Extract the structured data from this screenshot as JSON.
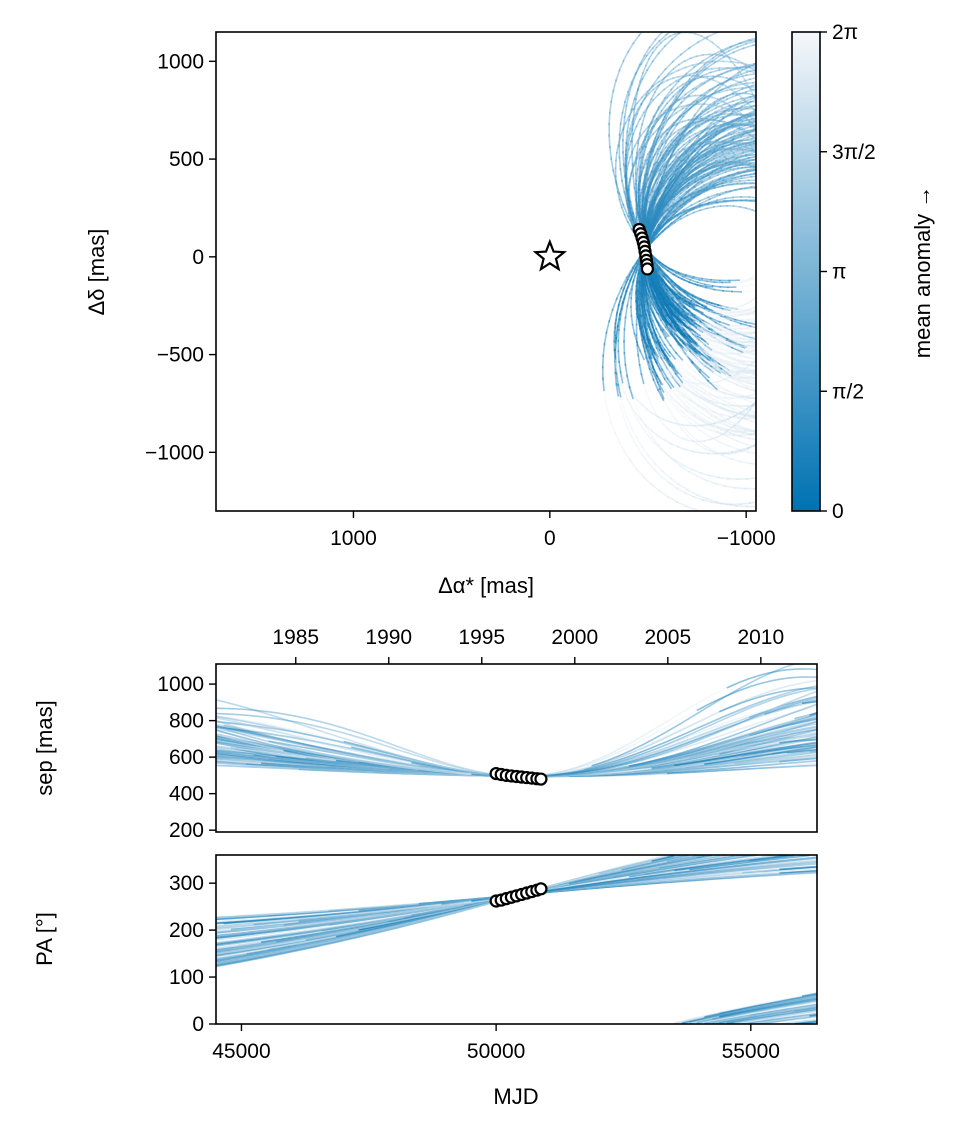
{
  "chart_data": [
    {
      "id": "sky",
      "type": "line",
      "xlabel": "Δα* [mas]",
      "ylabel": "Δδ [mas]",
      "xlim": [
        1700,
        -1050
      ],
      "ylim": [
        -1300,
        1150
      ],
      "x_inverted": true,
      "xticks": [
        {
          "v": 1000,
          "label": "1000"
        },
        {
          "v": 0,
          "label": "0"
        },
        {
          "v": -1000,
          "label": "−1000"
        }
      ],
      "yticks": [
        {
          "v": 1000,
          "label": "1000"
        },
        {
          "v": 500,
          "label": "500"
        },
        {
          "v": 0,
          "label": "0"
        },
        {
          "v": -500,
          "label": "−500"
        },
        {
          "v": -1000,
          "label": "−1000"
        }
      ],
      "star_marker": {
        "x": 0,
        "y": 0,
        "symbol": "star"
      },
      "observations": [
        {
          "x": -455,
          "y": 140
        },
        {
          "x": -463,
          "y": 118
        },
        {
          "x": -470,
          "y": 96
        },
        {
          "x": -476,
          "y": 74
        },
        {
          "x": -481,
          "y": 51
        },
        {
          "x": -485,
          "y": 28
        },
        {
          "x": -489,
          "y": 5
        },
        {
          "x": -492,
          "y": -18
        },
        {
          "x": -495,
          "y": -40
        },
        {
          "x": -497,
          "y": -62
        }
      ],
      "grid": false
    },
    {
      "id": "sep",
      "type": "line",
      "xlabel": "",
      "ylabel": "sep [mas]",
      "xlim": [
        44500,
        56300
      ],
      "ylim": [
        190,
        1110
      ],
      "yticks": [
        {
          "v": 200,
          "label": "200"
        },
        {
          "v": 400,
          "label": "400"
        },
        {
          "v": 600,
          "label": "600"
        },
        {
          "v": 800,
          "label": "800"
        },
        {
          "v": 1000,
          "label": "1000"
        }
      ],
      "top_axis": {
        "ticks": [
          {
            "mjd": 46066,
            "label": "1985"
          },
          {
            "mjd": 47892,
            "label": "1990"
          },
          {
            "mjd": 49718,
            "label": "1995"
          },
          {
            "mjd": 51544,
            "label": "2000"
          },
          {
            "mjd": 53371,
            "label": "2005"
          },
          {
            "mjd": 55197,
            "label": "2010"
          }
        ]
      },
      "observations": [
        {
          "x": 50000,
          "y": 510
        },
        {
          "x": 50100,
          "y": 505
        },
        {
          "x": 50200,
          "y": 500
        },
        {
          "x": 50300,
          "y": 497
        },
        {
          "x": 50400,
          "y": 494
        },
        {
          "x": 50500,
          "y": 491
        },
        {
          "x": 50600,
          "y": 488
        },
        {
          "x": 50700,
          "y": 485
        },
        {
          "x": 50800,
          "y": 482
        },
        {
          "x": 50880,
          "y": 480
        }
      ],
      "grid": false
    },
    {
      "id": "pa",
      "type": "line",
      "xlabel": "MJD",
      "ylabel": "PA [°]",
      "xlim": [
        44500,
        56300
      ],
      "ylim": [
        0,
        360
      ],
      "xticks": [
        {
          "v": 45000,
          "label": "45000"
        },
        {
          "v": 50000,
          "label": "50000"
        },
        {
          "v": 55000,
          "label": "55000"
        }
      ],
      "yticks": [
        {
          "v": 0,
          "label": "0"
        },
        {
          "v": 100,
          "label": "100"
        },
        {
          "v": 200,
          "label": "200"
        },
        {
          "v": 300,
          "label": "300"
        }
      ],
      "observations": [
        {
          "x": 50000,
          "y": 262
        },
        {
          "x": 50100,
          "y": 264
        },
        {
          "x": 50200,
          "y": 267
        },
        {
          "x": 50300,
          "y": 270
        },
        {
          "x": 50400,
          "y": 273
        },
        {
          "x": 50500,
          "y": 276
        },
        {
          "x": 50600,
          "y": 279
        },
        {
          "x": 50700,
          "y": 282
        },
        {
          "x": 50800,
          "y": 285
        },
        {
          "x": 50880,
          "y": 288
        }
      ],
      "grid": false
    },
    {
      "id": "colorbar",
      "type": "colorbar",
      "label": "mean anomaly →",
      "range": [
        0,
        6.2832
      ],
      "ticks": [
        {
          "v": 0,
          "label": "0"
        },
        {
          "v": 1.5708,
          "label": "π/2"
        },
        {
          "v": 3.1416,
          "label": "π"
        },
        {
          "v": 4.7124,
          "label": "3π/2"
        },
        {
          "v": 6.2832,
          "label": "2π"
        }
      ],
      "colors": [
        "#0072b2",
        "#f5f7fa"
      ]
    }
  ],
  "colors": {
    "orbit": "#0072b2",
    "orbit_light": "#f5f7fa",
    "marker_edge": "#000000",
    "marker_fill": "#ffffff"
  }
}
